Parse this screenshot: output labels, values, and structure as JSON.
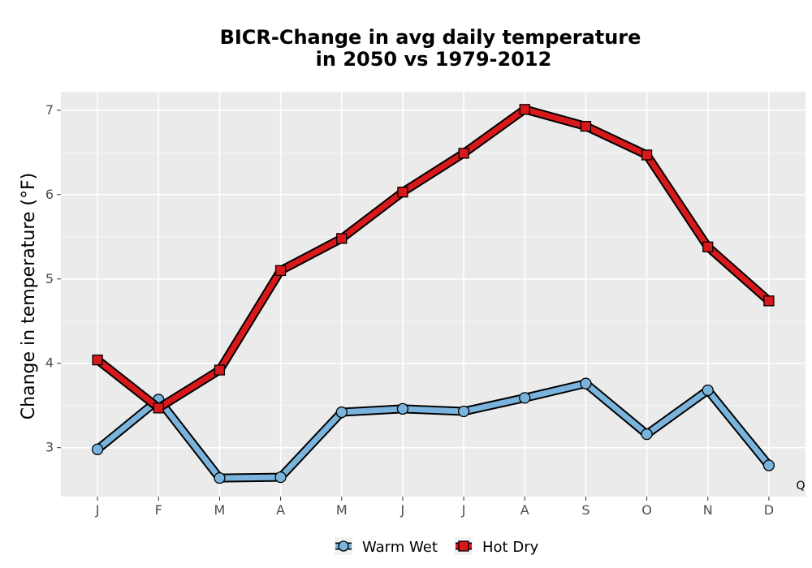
{
  "chart_data": {
    "type": "line",
    "title_lines": [
      "BICR-Change in avg daily temperature",
      "in 2050 vs 1979-2012"
    ],
    "xlabel": "",
    "ylabel": "Change in temperature (°F)",
    "categories": [
      "J",
      "F",
      "M",
      "A",
      "M",
      "J",
      "J",
      "A",
      "S",
      "O",
      "N",
      "D"
    ],
    "yticks": [
      3,
      4,
      5,
      6,
      7
    ],
    "ylim": [
      2.42,
      7.22
    ],
    "grid": true,
    "legend_position": "bottom",
    "corner_note": "Q",
    "series": [
      {
        "name": "Warm Wet",
        "marker": "circle",
        "color": "#7ab4dd",
        "values": [
          2.98,
          3.57,
          2.64,
          2.65,
          3.42,
          3.46,
          3.43,
          3.59,
          3.76,
          3.16,
          3.68,
          2.79
        ]
      },
      {
        "name": "Hot Dry",
        "marker": "square",
        "color": "#d7191c",
        "values": [
          4.04,
          3.47,
          3.92,
          5.1,
          5.48,
          6.03,
          6.49,
          7.01,
          6.81,
          6.47,
          5.38,
          4.74
        ]
      }
    ]
  }
}
